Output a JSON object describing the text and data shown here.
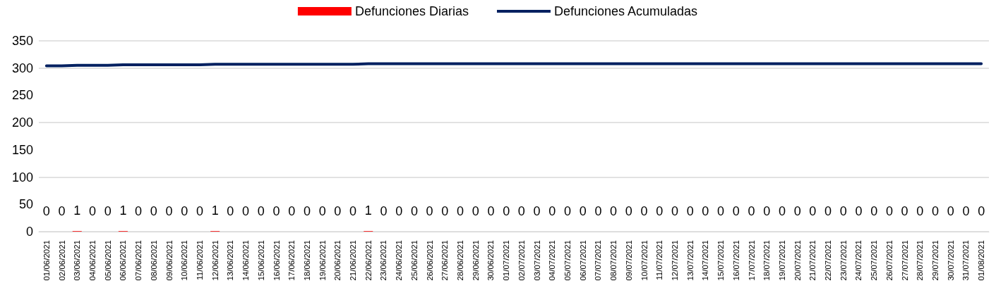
{
  "chart_data": {
    "type": "bar",
    "categories": [
      "01/06/2021",
      "02/06/2021",
      "03/06/2021",
      "04/06/2021",
      "05/06/2021",
      "06/06/2021",
      "07/06/2021",
      "08/06/2021",
      "09/06/2021",
      "10/06/2021",
      "11/06/2021",
      "12/06/2021",
      "13/06/2021",
      "14/06/2021",
      "15/06/2021",
      "16/06/2021",
      "17/06/2021",
      "18/06/2021",
      "19/06/2021",
      "20/06/2021",
      "21/06/2021",
      "22/06/2021",
      "23/06/2021",
      "24/06/2021",
      "25/06/2021",
      "26/06/2021",
      "27/06/2021",
      "28/06/2021",
      "29/06/2021",
      "30/06/2021",
      "01/07/2021",
      "02/07/2021",
      "03/07/2021",
      "04/07/2021",
      "05/07/2021",
      "06/07/2021",
      "07/07/2021",
      "08/07/2021",
      "09/07/2021",
      "10/07/2021",
      "11/07/2021",
      "12/07/2021",
      "13/07/2021",
      "14/07/2021",
      "15/07/2021",
      "16/07/2021",
      "17/07/2021",
      "18/07/2021",
      "19/07/2021",
      "20/07/2021",
      "21/07/2021",
      "22/07/2021",
      "23/07/2021",
      "24/07/2021",
      "25/07/2021",
      "26/07/2021",
      "27/07/2021",
      "28/07/2021",
      "29/07/2021",
      "30/07/2021",
      "31/07/2021",
      "01/08/2021"
    ],
    "series": [
      {
        "name": "Defunciones Diarias",
        "color": "#ff0000",
        "values": [
          0,
          0,
          1,
          0,
          0,
          1,
          0,
          0,
          0,
          0,
          0,
          1,
          0,
          0,
          0,
          0,
          0,
          0,
          0,
          0,
          0,
          1,
          0,
          0,
          0,
          0,
          0,
          0,
          0,
          0,
          0,
          0,
          0,
          0,
          0,
          0,
          0,
          0,
          0,
          0,
          0,
          0,
          0,
          0,
          0,
          0,
          0,
          0,
          0,
          0,
          0,
          0,
          0,
          0,
          0,
          0,
          0,
          0,
          0,
          0,
          0,
          0
        ],
        "value_labels": [
          "0",
          "0",
          "1",
          "0",
          "0",
          "1",
          "0",
          "0",
          "0",
          "0",
          "0",
          "1",
          "0",
          "0",
          "0",
          "0",
          "0",
          "0",
          "0",
          "0",
          "0",
          "1",
          "0",
          "0",
          "0",
          "0",
          "0",
          "0",
          "0",
          "0",
          "0",
          "0",
          "0",
          "0",
          "0",
          "0",
          "0",
          "0",
          "0",
          "0",
          "0",
          "0",
          "0",
          "0",
          "0",
          "0",
          "0",
          "0",
          "0",
          "0",
          "0",
          "0",
          "0",
          "0",
          "0",
          "0",
          "0",
          "0",
          "0",
          "0",
          "0",
          "0"
        ]
      },
      {
        "name": "Defunciones Acumuladas",
        "type": "line",
        "color": "#002060",
        "values": [
          304,
          304,
          305,
          305,
          305,
          306,
          306,
          306,
          306,
          306,
          306,
          307,
          307,
          307,
          307,
          307,
          307,
          307,
          307,
          307,
          307,
          308,
          308,
          308,
          308,
          308,
          308,
          308,
          308,
          308,
          308,
          308,
          308,
          308,
          308,
          308,
          308,
          308,
          308,
          308,
          308,
          308,
          308,
          308,
          308,
          308,
          308,
          308,
          308,
          308,
          308,
          308,
          308,
          308,
          308,
          308,
          308,
          308,
          308,
          308,
          308,
          308
        ]
      }
    ],
    "ylim": [
      0,
      350
    ],
    "yticks": [
      0,
      50,
      100,
      150,
      200,
      250,
      300,
      350
    ],
    "grid": "y",
    "legend": "top",
    "marker": "none"
  }
}
